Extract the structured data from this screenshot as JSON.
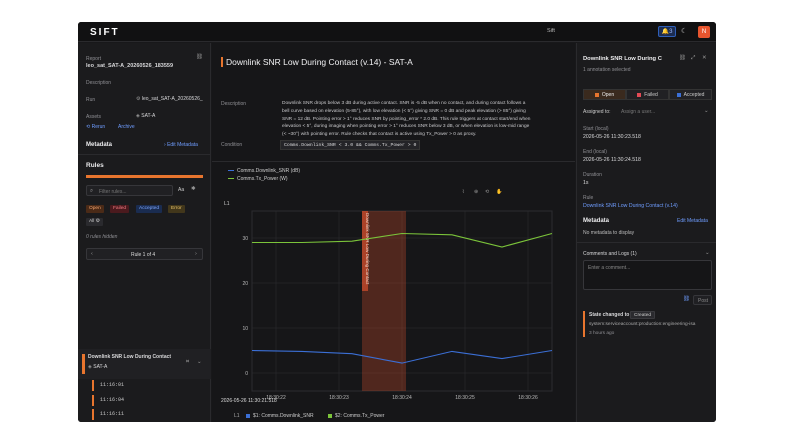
{
  "topbar": {
    "logo": "SIFT",
    "center_label": "Sift",
    "notification_count": "3",
    "avatar_initial": "N"
  },
  "left": {
    "report_label": "Report",
    "report_name": "leo_sat_SAT-A_20260526_183559",
    "description_label": "Description",
    "run_label": "Run",
    "run_value": "leo_sat_SAT-A_20260526_",
    "assets_label": "Assets",
    "asset_value": "SAT-A",
    "rerun_label": "Rerun",
    "archive_label": "Archive",
    "metadata_label": "Metadata",
    "edit_metadata_label": "Edit Metadata",
    "rules_label": "Rules",
    "filter_placeholder": "Filter rules...",
    "case_toggle": "Aa",
    "filters": [
      "Open",
      "Failed",
      "Accepted",
      "Error"
    ],
    "all_filter": "All",
    "rules_hidden": "0 rules hidden",
    "pager_label": "Rule 1 of 4",
    "rule_title": "Downlink SNR Low During Contact",
    "rule_asset": "SAT-A",
    "times": [
      "11:16:01",
      "11:16:04",
      "11:16:11",
      "11:16:17",
      "11:16:24"
    ]
  },
  "center": {
    "title": "Downlink SNR Low During Contact (v.14) - SAT-A",
    "description_label": "Description",
    "description_lines": [
      "Downlink SNR drops below 3 dB during active contact. SNR is -5 dB when no contact, and during contact follows a",
      "bell curve based on elevation (5-85°), with low elevation (< 5°) giving SNR = 0 dB and peak elevation (> 85°) giving",
      "SNR = 12 dB. Pointing error > 1° reduces SNR by pointing_error * 2.0 dB. This rule triggers at contact start/end when",
      "elevation < 5°, during imaging when pointing error > 1° reduces SNR below 3 dB, or when elevation is low-mid range",
      "(< ~30°) with pointing error. Rule checks that contact is active using Tx_Power > 0 as proxy."
    ],
    "condition_label": "Condition",
    "condition_code": "Comms.Downlink_SNR < 3.0 && Comms.Tx_Power > 0",
    "legend_items": [
      "Comms.Downlink_SNR (dB)",
      "Comms.Tx_Power (W)"
    ],
    "axis_group_label": "L1",
    "annotation_label": "Downlink SNR Low During Contact",
    "date_label": "2026-05-26 11:30:21.518",
    "footer_axis": "L1",
    "footer_series": [
      "$1: Comms.Downlink_SNR",
      "$2: Comms.Tx_Power"
    ]
  },
  "right": {
    "title": "Downlink SNR Low During C",
    "subtitle": "1 annotation selected",
    "status_buttons": [
      "Open",
      "Failed",
      "Accepted"
    ],
    "assigned_label": "Assigned to:",
    "assign_placeholder": "Assign a user...",
    "start_label": "Start (local)",
    "start_value": "2026-05-26 11:30:23.518",
    "end_label": "End (local)",
    "end_value": "2026-05-26 11:30:24.518",
    "duration_label": "Duration",
    "duration_value": "1s",
    "rule_label": "Rule",
    "rule_value": "Downlink SNR Low During Contact (v.14)",
    "metadata_label": "Metadata",
    "edit_metadata_label": "Edit Metadata",
    "no_metadata": "No metadata to display",
    "comments_label": "Comments and Logs (1)",
    "comment_placeholder": "Enter a comment...",
    "post_label": "Post",
    "state_text": "State changed to",
    "state_value": "Created",
    "actor": "system:serviceaccount:production:engineering-isa",
    "ago": "3 hours ago"
  },
  "chart_data": {
    "type": "line",
    "title": "",
    "x": [
      "11:30:21.5",
      "11:30:22.5",
      "11:30:23.5",
      "11:30:24.5",
      "11:30:25.5",
      "11:30:26.5",
      "11:30:27.5"
    ],
    "x_ticks": [
      "18:30:22",
      "18:30:23",
      "18:30:24",
      "18:30:25",
      "18:30:26"
    ],
    "series": [
      {
        "name": "Comms.Downlink_SNR (dB)",
        "color": "#3b6fd6",
        "values": [
          5,
          4.8,
          4.3,
          2.2,
          4.8,
          3.2,
          5
        ]
      },
      {
        "name": "Comms.Tx_Power (W)",
        "color": "#7bc43a",
        "values": [
          29,
          29,
          29.3,
          31,
          30.7,
          28,
          31
        ]
      }
    ],
    "ylim": [
      -4,
      36
    ],
    "y_ticks": [
      "0",
      "10",
      "20",
      "30"
    ],
    "highlight": {
      "start": "11:30:23.518",
      "end": "11:30:24.518",
      "color": "#e8552e"
    },
    "grid": true
  }
}
